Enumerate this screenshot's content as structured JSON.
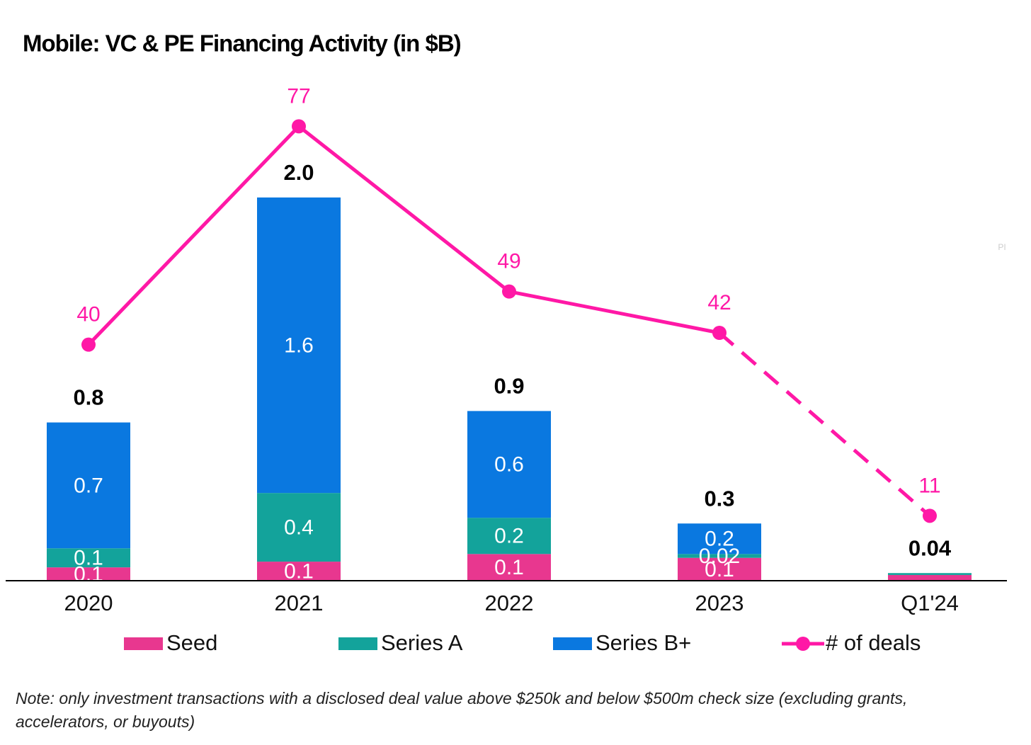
{
  "chart_data": {
    "type": "bar",
    "stacked": true,
    "title": "Mobile: VC & PE Financing Activity (in $B)",
    "categories": [
      "2020",
      "2021",
      "2022",
      "2023",
      "Q1'24"
    ],
    "series": [
      {
        "name": "Seed",
        "color": "#e8378f",
        "values": [
          0.07,
          0.1,
          0.14,
          0.12,
          0.03
        ],
        "value_labels": [
          "0.1",
          "0.1",
          "0.1",
          "0.1",
          null
        ]
      },
      {
        "name": "Series A",
        "color": "#13a39b",
        "values": [
          0.1,
          0.36,
          0.19,
          0.02,
          0.01
        ],
        "value_labels": [
          "0.1",
          "0.4",
          "0.2",
          "0.02",
          null
        ]
      },
      {
        "name": "Series B+",
        "color": "#0a78e0",
        "values": [
          0.66,
          1.55,
          0.56,
          0.16,
          0
        ],
        "value_labels": [
          "0.7",
          "1.6",
          "0.6",
          "0.2",
          null
        ]
      },
      {
        "name": "# of deals",
        "type": "line",
        "axis": "y2",
        "color": "#ff18a6",
        "values": [
          40,
          77,
          49,
          42,
          11
        ],
        "projected": [
          false,
          false,
          false,
          false,
          true
        ]
      }
    ],
    "totals": {
      "values": [
        0.83,
        2.01,
        0.89,
        0.3,
        0.04
      ],
      "value_labels": [
        "0.8",
        "2.0",
        "0.9",
        "0.3",
        "0.04"
      ]
    },
    "ylim": [
      0,
      2.6
    ],
    "y2lim": [
      0,
      84
    ],
    "grid": false,
    "legend": "bottom",
    "note": "Note: only investment transactions with a disclosed deal value above $250k and below $500m check size (excluding grants, accelerators, or buyouts)",
    "watermark": "PI"
  }
}
